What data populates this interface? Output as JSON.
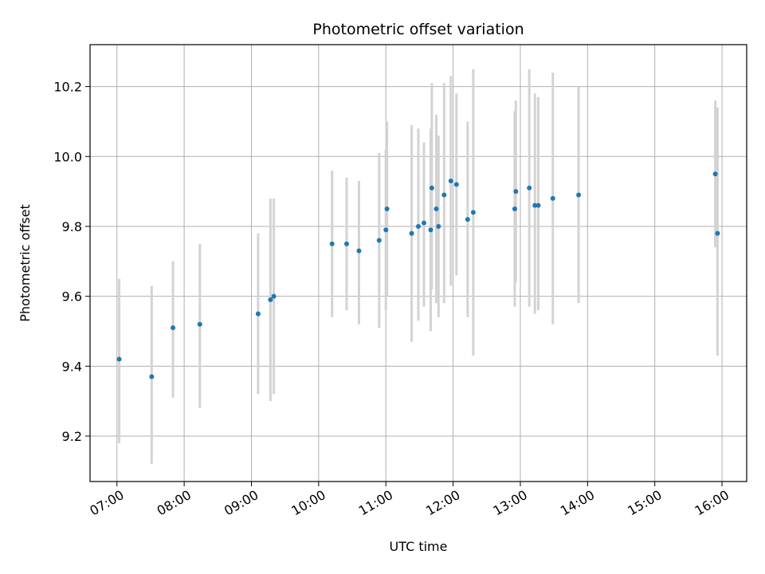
{
  "chart_data": {
    "type": "scatter",
    "title": "Photometric offset variation",
    "xlabel": "UTC time",
    "ylabel": "Photometric offset",
    "x_axis": "time",
    "xlim": [
      "06:36",
      "16:22"
    ],
    "ylim": [
      9.07,
      10.32
    ],
    "grid": true,
    "x_ticks": [
      "07:00",
      "08:00",
      "09:00",
      "10:00",
      "11:00",
      "12:00",
      "13:00",
      "14:00",
      "15:00",
      "16:00"
    ],
    "y_ticks": [
      "9.2",
      "9.4",
      "9.6",
      "9.8",
      "10.0",
      "10.2"
    ],
    "points": [
      {
        "x": "07:02",
        "y": 9.42,
        "lo": 9.18,
        "hi": 9.65
      },
      {
        "x": "07:31",
        "y": 9.37,
        "lo": 9.12,
        "hi": 9.63
      },
      {
        "x": "07:50",
        "y": 9.51,
        "lo": 9.31,
        "hi": 9.7
      },
      {
        "x": "08:14",
        "y": 9.52,
        "lo": 9.28,
        "hi": 9.75
      },
      {
        "x": "09:06",
        "y": 9.55,
        "lo": 9.32,
        "hi": 9.78
      },
      {
        "x": "09:17",
        "y": 9.59,
        "lo": 9.3,
        "hi": 9.88
      },
      {
        "x": "09:20",
        "y": 9.6,
        "lo": 9.32,
        "hi": 9.88
      },
      {
        "x": "10:12",
        "y": 9.75,
        "lo": 9.54,
        "hi": 9.96
      },
      {
        "x": "10:25",
        "y": 9.75,
        "lo": 9.56,
        "hi": 9.94
      },
      {
        "x": "10:36",
        "y": 9.73,
        "lo": 9.52,
        "hi": 9.93
      },
      {
        "x": "10:54",
        "y": 9.76,
        "lo": 9.51,
        "hi": 10.01
      },
      {
        "x": "11:00",
        "y": 9.79,
        "lo": 9.56,
        "hi": 10.02
      },
      {
        "x": "11:01",
        "y": 9.85,
        "lo": 9.6,
        "hi": 10.1
      },
      {
        "x": "11:23",
        "y": 9.78,
        "lo": 9.47,
        "hi": 10.09
      },
      {
        "x": "11:29",
        "y": 9.8,
        "lo": 9.53,
        "hi": 10.08
      },
      {
        "x": "11:34",
        "y": 9.81,
        "lo": 9.57,
        "hi": 10.04
      },
      {
        "x": "11:40",
        "y": 9.79,
        "lo": 9.5,
        "hi": 10.08
      },
      {
        "x": "11:41",
        "y": 9.91,
        "lo": 9.62,
        "hi": 10.21
      },
      {
        "x": "11:45",
        "y": 9.85,
        "lo": 9.58,
        "hi": 10.12
      },
      {
        "x": "11:47",
        "y": 9.8,
        "lo": 9.54,
        "hi": 10.06
      },
      {
        "x": "11:52",
        "y": 9.89,
        "lo": 9.58,
        "hi": 10.21
      },
      {
        "x": "11:58",
        "y": 9.93,
        "lo": 9.63,
        "hi": 10.23
      },
      {
        "x": "12:03",
        "y": 9.92,
        "lo": 9.66,
        "hi": 10.18
      },
      {
        "x": "12:13",
        "y": 9.82,
        "lo": 9.54,
        "hi": 10.1
      },
      {
        "x": "12:18",
        "y": 9.84,
        "lo": 9.43,
        "hi": 10.25
      },
      {
        "x": "12:55",
        "y": 9.85,
        "lo": 9.57,
        "hi": 10.13
      },
      {
        "x": "12:56",
        "y": 9.9,
        "lo": 9.64,
        "hi": 10.16
      },
      {
        "x": "13:08",
        "y": 9.91,
        "lo": 9.57,
        "hi": 10.25
      },
      {
        "x": "13:13",
        "y": 9.86,
        "lo": 9.55,
        "hi": 10.18
      },
      {
        "x": "13:16",
        "y": 9.86,
        "lo": 9.56,
        "hi": 10.17
      },
      {
        "x": "13:29",
        "y": 9.88,
        "lo": 9.52,
        "hi": 10.24
      },
      {
        "x": "13:52",
        "y": 9.89,
        "lo": 9.58,
        "hi": 10.2
      },
      {
        "x": "15:54",
        "y": 9.95,
        "lo": 9.74,
        "hi": 10.16
      },
      {
        "x": "15:56",
        "y": 9.78,
        "lo": 9.43,
        "hi": 10.14
      }
    ],
    "marker_color": "#1f77b4",
    "errorbar_color": "#d3d3d3"
  }
}
